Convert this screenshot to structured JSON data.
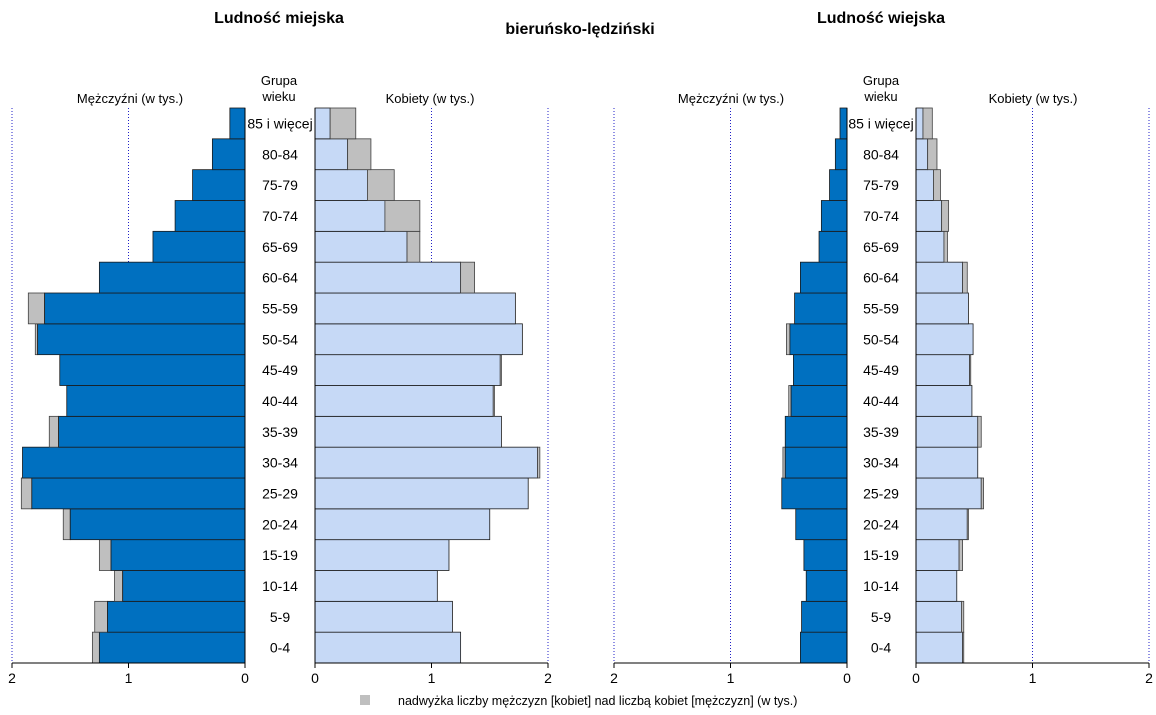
{
  "region_title": "bieruńsko-lędziński",
  "legend_text": "nadwyżka liczby mężczyzn [kobiet] nad liczbą kobiet [mężczyzn] (w tys.)",
  "colors": {
    "male": "#0070c0",
    "female": "#c6d9f6",
    "surplus": "#bfbfbf",
    "gridline": "#2020c8"
  },
  "chart_data": [
    {
      "type": "population_pyramid",
      "title": "Ludność miejska",
      "male_label": "Mężczyźni (w tys.)",
      "female_label": "Kobiety (w tys.)",
      "age_group_header": [
        "Grupa",
        "wieku"
      ],
      "xlim": [
        0,
        2
      ],
      "xticks": [
        "2",
        "1",
        "0",
        "0",
        "1",
        "2"
      ],
      "age_groups": [
        "0-4",
        "5-9",
        "10-14",
        "15-19",
        "20-24",
        "25-29",
        "30-34",
        "35-39",
        "40-44",
        "45-49",
        "50-54",
        "55-59",
        "60-64",
        "65-69",
        "70-74",
        "75-79",
        "80-84",
        "85 i więcej"
      ],
      "male": [
        1.31,
        1.29,
        1.12,
        1.25,
        1.56,
        1.92,
        1.91,
        1.68,
        1.53,
        1.59,
        1.8,
        1.86,
        1.25,
        0.79,
        0.6,
        0.45,
        0.28,
        0.13
      ],
      "female": [
        1.25,
        1.18,
        1.05,
        1.15,
        1.5,
        1.83,
        1.93,
        1.6,
        1.54,
        1.6,
        1.78,
        1.72,
        1.37,
        0.9,
        0.9,
        0.68,
        0.48,
        0.35
      ]
    },
    {
      "type": "population_pyramid",
      "title": "Ludność wiejska",
      "male_label": "Mężczyźni (w tys.)",
      "female_label": "Kobiety (w tys.)",
      "age_group_header": [
        "Grupa",
        "wieku"
      ],
      "xlim": [
        0,
        2
      ],
      "xticks": [
        "2",
        "1",
        "0",
        "0",
        "1",
        "2"
      ],
      "age_groups": [
        "0-4",
        "5-9",
        "10-14",
        "15-19",
        "20-24",
        "25-29",
        "30-34",
        "35-39",
        "40-44",
        "45-49",
        "50-54",
        "55-59",
        "60-64",
        "65-69",
        "70-74",
        "75-79",
        "80-84",
        "85 i więcej"
      ],
      "male": [
        0.4,
        0.39,
        0.35,
        0.37,
        0.44,
        0.56,
        0.55,
        0.53,
        0.5,
        0.46,
        0.52,
        0.45,
        0.4,
        0.24,
        0.22,
        0.15,
        0.1,
        0.06
      ],
      "female": [
        0.41,
        0.41,
        0.35,
        0.4,
        0.45,
        0.58,
        0.53,
        0.56,
        0.48,
        0.47,
        0.49,
        0.45,
        0.44,
        0.27,
        0.28,
        0.21,
        0.18,
        0.14
      ]
    }
  ]
}
